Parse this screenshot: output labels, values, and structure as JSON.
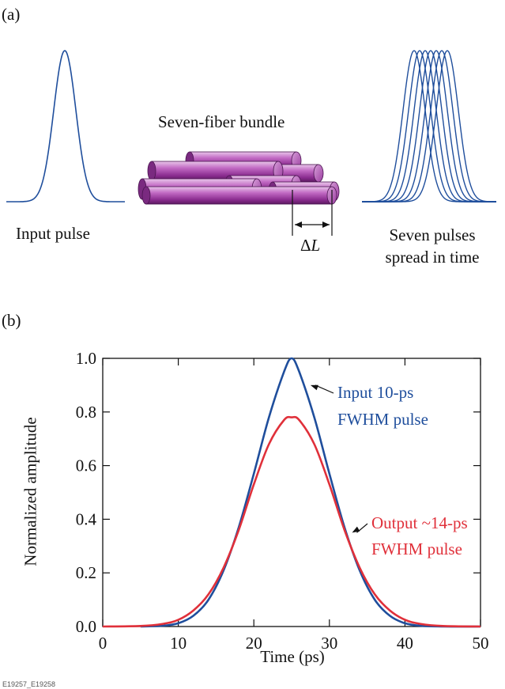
{
  "panel_a": {
    "label": "(a)",
    "input_caption": "Input pulse",
    "bundle_caption": "Seven-fiber bundle",
    "delta_symbol": "Δ",
    "delta_var": "L",
    "output_caption_line1": "Seven pulses",
    "output_caption_line2": "spread in time",
    "pulse_color": "#1f4e9c",
    "fiber_color": "#b455b8",
    "pulse_copies": 7
  },
  "panel_b": {
    "label": "(b)"
  },
  "footer": {
    "figure_id": "E19257_E19258"
  },
  "chart_data": {
    "type": "line",
    "xlabel": "Time (ps)",
    "ylabel": "Normalized amplitude",
    "xlim": [
      0,
      50
    ],
    "ylim": [
      0,
      1.0
    ],
    "xticks": [
      0,
      10,
      20,
      30,
      40,
      50
    ],
    "yticks": [
      0.0,
      0.2,
      0.4,
      0.6,
      0.8,
      1.0
    ],
    "ytick_labels": [
      "0.0",
      "0.2",
      "0.4",
      "0.6",
      "0.8",
      "1.0"
    ],
    "grid": false,
    "series": [
      {
        "color": "#1f4e9c",
        "x": [
          5,
          8,
          10,
          12,
          14,
          16,
          18,
          20,
          22,
          24,
          25,
          26,
          28,
          30,
          32,
          34,
          36,
          38,
          40,
          42,
          45,
          50
        ],
        "y": [
          0.0,
          0.003,
          0.012,
          0.04,
          0.1,
          0.21,
          0.37,
          0.57,
          0.78,
          0.95,
          1.0,
          0.95,
          0.78,
          0.57,
          0.37,
          0.21,
          0.1,
          0.04,
          0.012,
          0.003,
          0.0,
          0.0
        ]
      },
      {
        "color": "#e0303a",
        "x": [
          0,
          5,
          8,
          10,
          12,
          14,
          16,
          18,
          20,
          22,
          24,
          25,
          26,
          28,
          30,
          32,
          34,
          36,
          38,
          40,
          42,
          45,
          50
        ],
        "y": [
          0.0,
          0.002,
          0.01,
          0.025,
          0.06,
          0.12,
          0.22,
          0.36,
          0.53,
          0.68,
          0.77,
          0.78,
          0.77,
          0.68,
          0.53,
          0.36,
          0.22,
          0.12,
          0.06,
          0.025,
          0.01,
          0.002,
          0.0
        ]
      }
    ],
    "annotations": [
      {
        "line1": "Input 10-ps",
        "line2": "FWHM pulse",
        "color": "#1f4e9c",
        "arrow_to": [
          27.5,
          0.9
        ]
      },
      {
        "line1": "Output ~14-ps",
        "line2": "FWHM pulse",
        "color": "#e0303a",
        "arrow_to": [
          33.0,
          0.35
        ]
      }
    ]
  }
}
